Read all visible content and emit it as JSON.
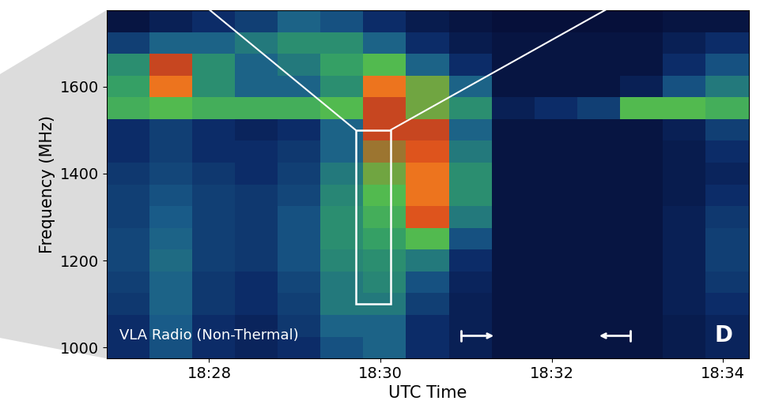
{
  "chart_data": {
    "type": "heatmap",
    "xlabel": "UTC Time",
    "ylabel": "Frequency (MHz)",
    "xlim": [
      26.8,
      34.3
    ],
    "ylim": [
      975,
      1775
    ],
    "xticks": [
      {
        "value": 28,
        "label": "18:28"
      },
      {
        "value": 30,
        "label": "18:30"
      },
      {
        "value": 32,
        "label": "18:32"
      },
      {
        "value": 34,
        "label": "18:34"
      }
    ],
    "yticks": [
      1000,
      1200,
      1400,
      1600
    ],
    "x_edges": [
      26.8,
      27.3,
      27.8,
      28.3,
      28.8,
      29.3,
      29.8,
      30.3,
      30.8,
      31.3,
      31.8,
      32.3,
      32.8,
      33.3,
      33.8,
      34.3
    ],
    "y_edges": [
      975,
      1025,
      1075,
      1125,
      1175,
      1225,
      1275,
      1325,
      1375,
      1425,
      1475,
      1525,
      1575,
      1625,
      1675,
      1725,
      1775
    ],
    "zlim": [
      0,
      1
    ],
    "cells": [
      [
        0.15,
        0.25,
        0.15,
        0.12,
        0.15,
        0.25,
        0.3,
        0.15,
        0.1,
        0.05,
        0.05,
        0.05,
        0.05,
        0.08,
        0.12
      ],
      [
        0.15,
        0.28,
        0.15,
        0.12,
        0.18,
        0.3,
        0.3,
        0.15,
        0.1,
        0.05,
        0.05,
        0.05,
        0.05,
        0.08,
        0.12
      ],
      [
        0.18,
        0.3,
        0.18,
        0.15,
        0.2,
        0.35,
        0.35,
        0.2,
        0.1,
        0.05,
        0.05,
        0.05,
        0.05,
        0.1,
        0.15
      ],
      [
        0.2,
        0.3,
        0.18,
        0.15,
        0.22,
        0.35,
        0.38,
        0.25,
        0.12,
        0.05,
        0.05,
        0.05,
        0.05,
        0.1,
        0.18
      ],
      [
        0.22,
        0.32,
        0.2,
        0.18,
        0.25,
        0.38,
        0.4,
        0.35,
        0.15,
        0.05,
        0.05,
        0.05,
        0.05,
        0.1,
        0.2
      ],
      [
        0.22,
        0.3,
        0.2,
        0.18,
        0.25,
        0.4,
        0.45,
        0.55,
        0.25,
        0.05,
        0.05,
        0.05,
        0.05,
        0.1,
        0.2
      ],
      [
        0.2,
        0.28,
        0.2,
        0.18,
        0.25,
        0.4,
        0.5,
        0.75,
        0.35,
        0.05,
        0.05,
        0.05,
        0.05,
        0.1,
        0.18
      ],
      [
        0.2,
        0.25,
        0.2,
        0.18,
        0.22,
        0.38,
        0.55,
        0.8,
        0.4,
        0.05,
        0.05,
        0.05,
        0.05,
        0.08,
        0.15
      ],
      [
        0.18,
        0.22,
        0.18,
        0.15,
        0.2,
        0.35,
        0.6,
        0.8,
        0.4,
        0.05,
        0.05,
        0.05,
        0.05,
        0.08,
        0.12
      ],
      [
        0.15,
        0.2,
        0.15,
        0.15,
        0.18,
        0.3,
        0.65,
        0.75,
        0.35,
        0.05,
        0.05,
        0.05,
        0.05,
        0.08,
        0.15
      ],
      [
        0.15,
        0.2,
        0.15,
        0.12,
        0.15,
        0.3,
        0.7,
        0.7,
        0.3,
        0.05,
        0.05,
        0.05,
        0.05,
        0.1,
        0.2
      ],
      [
        0.5,
        0.55,
        0.5,
        0.5,
        0.5,
        0.55,
        0.7,
        0.6,
        0.4,
        0.1,
        0.15,
        0.2,
        0.55,
        0.55,
        0.5
      ],
      [
        0.45,
        0.8,
        0.4,
        0.3,
        0.3,
        0.4,
        0.8,
        0.6,
        0.3,
        0.05,
        0.05,
        0.05,
        0.1,
        0.25,
        0.35
      ],
      [
        0.4,
        0.7,
        0.4,
        0.3,
        0.35,
        0.45,
        0.55,
        0.3,
        0.15,
        0.05,
        0.05,
        0.05,
        0.05,
        0.15,
        0.25
      ],
      [
        0.2,
        0.3,
        0.3,
        0.35,
        0.4,
        0.4,
        0.3,
        0.15,
        0.08,
        0.05,
        0.05,
        0.05,
        0.05,
        0.1,
        0.15
      ],
      [
        0.05,
        0.1,
        0.15,
        0.2,
        0.3,
        0.25,
        0.15,
        0.08,
        0.05,
        0.03,
        0.03,
        0.03,
        0.03,
        0.05,
        0.05
      ]
    ],
    "box": {
      "x": [
        29.71,
        30.12
      ],
      "y": [
        1100,
        1500
      ]
    },
    "arrows": [
      {
        "from": 30.92,
        "to": 31.35
      },
      {
        "from": 32.94,
        "to": 32.53
      }
    ],
    "annotations": [
      "VLA Radio (Non-Thermal)",
      "D"
    ]
  }
}
